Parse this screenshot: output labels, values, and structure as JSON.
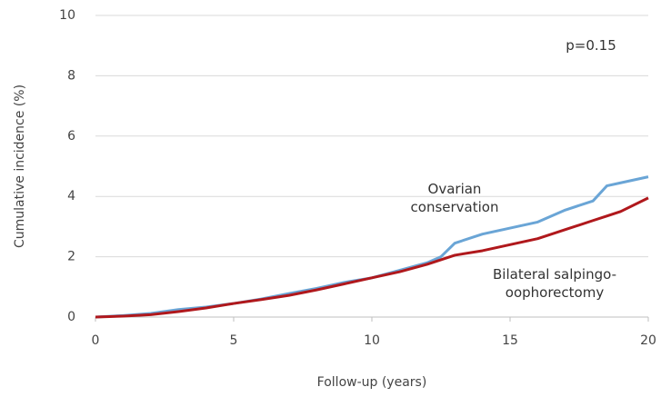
{
  "chart_data": {
    "type": "line",
    "x_label": "Follow-up (years)",
    "y_label": "Cumulative incidence (%)",
    "annotation": "p=0.15",
    "x": [
      0,
      1,
      2,
      3,
      4,
      5,
      6,
      7,
      8,
      9,
      10,
      11,
      12,
      12.5,
      13,
      14,
      15,
      16,
      17,
      18,
      18.5,
      19,
      20
    ],
    "series": [
      {
        "name": "Ovarian conservation",
        "color": "#6aa5d6",
        "values": [
          0,
          0.05,
          0.12,
          0.25,
          0.33,
          0.45,
          0.6,
          0.78,
          0.95,
          1.15,
          1.3,
          1.55,
          1.8,
          2.0,
          2.45,
          2.75,
          2.95,
          3.15,
          3.55,
          3.85,
          4.35,
          4.45,
          4.65
        ]
      },
      {
        "name": "Bilateral salpingo-oophorectomy",
        "color": "#b0181c",
        "values": [
          0,
          0.03,
          0.08,
          0.18,
          0.3,
          0.45,
          0.58,
          0.72,
          0.9,
          1.1,
          1.3,
          1.5,
          1.75,
          1.9,
          2.05,
          2.2,
          2.4,
          2.6,
          2.9,
          3.2,
          3.35,
          3.5,
          3.95
        ]
      }
    ],
    "xlim": [
      0,
      20
    ],
    "xticks": [
      0,
      5,
      10,
      15,
      20
    ],
    "ylim": [
      0,
      10
    ],
    "yticks": [
      0,
      2,
      4,
      6,
      8,
      10
    ],
    "grid": true
  }
}
